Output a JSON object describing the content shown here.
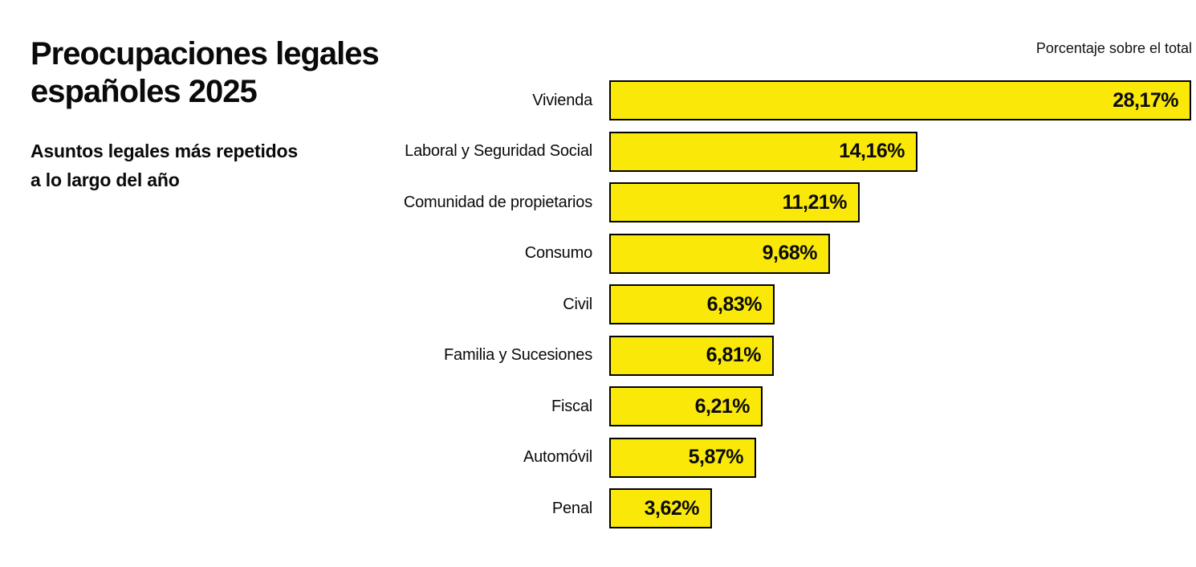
{
  "header": {
    "title_line1": "Preocupaciones legales",
    "title_line2": "españoles 2025",
    "subtitle_line1": "Asuntos legales más repetidos",
    "subtitle_line2": "a lo largo del año",
    "axis_note": "Porcentaje sobre el total"
  },
  "chart_data": {
    "type": "bar",
    "orientation": "horizontal",
    "title": "Preocupaciones legales españoles 2025",
    "subtitle": "Asuntos legales más repetidos a lo largo del año",
    "value_axis_note": "Porcentaje sobre el total",
    "unit": "%",
    "decimal_separator": ",",
    "categories": [
      "Vivienda",
      "Laboral y Seguridad Social",
      "Comunidad de propietarios",
      "Consumo",
      "Civil",
      "Familia y Sucesiones",
      "Fiscal",
      "Automóvil",
      "Penal"
    ],
    "values": [
      28.17,
      14.16,
      11.21,
      9.68,
      6.83,
      6.81,
      6.21,
      5.87,
      3.62
    ],
    "value_labels": [
      "28,17%",
      "14,16%",
      "11,21%",
      "9,68%",
      "6,83%",
      "6,81%",
      "6,21%",
      "5,87%",
      "3,62%"
    ],
    "value_label_position": "inside-right",
    "sorted": "descending",
    "grid": false,
    "legend": "none",
    "bar_color": "#FAE908",
    "bar_border_color": "#000000",
    "text_color": "#0A0A0A",
    "background": "#FFFFFF"
  }
}
